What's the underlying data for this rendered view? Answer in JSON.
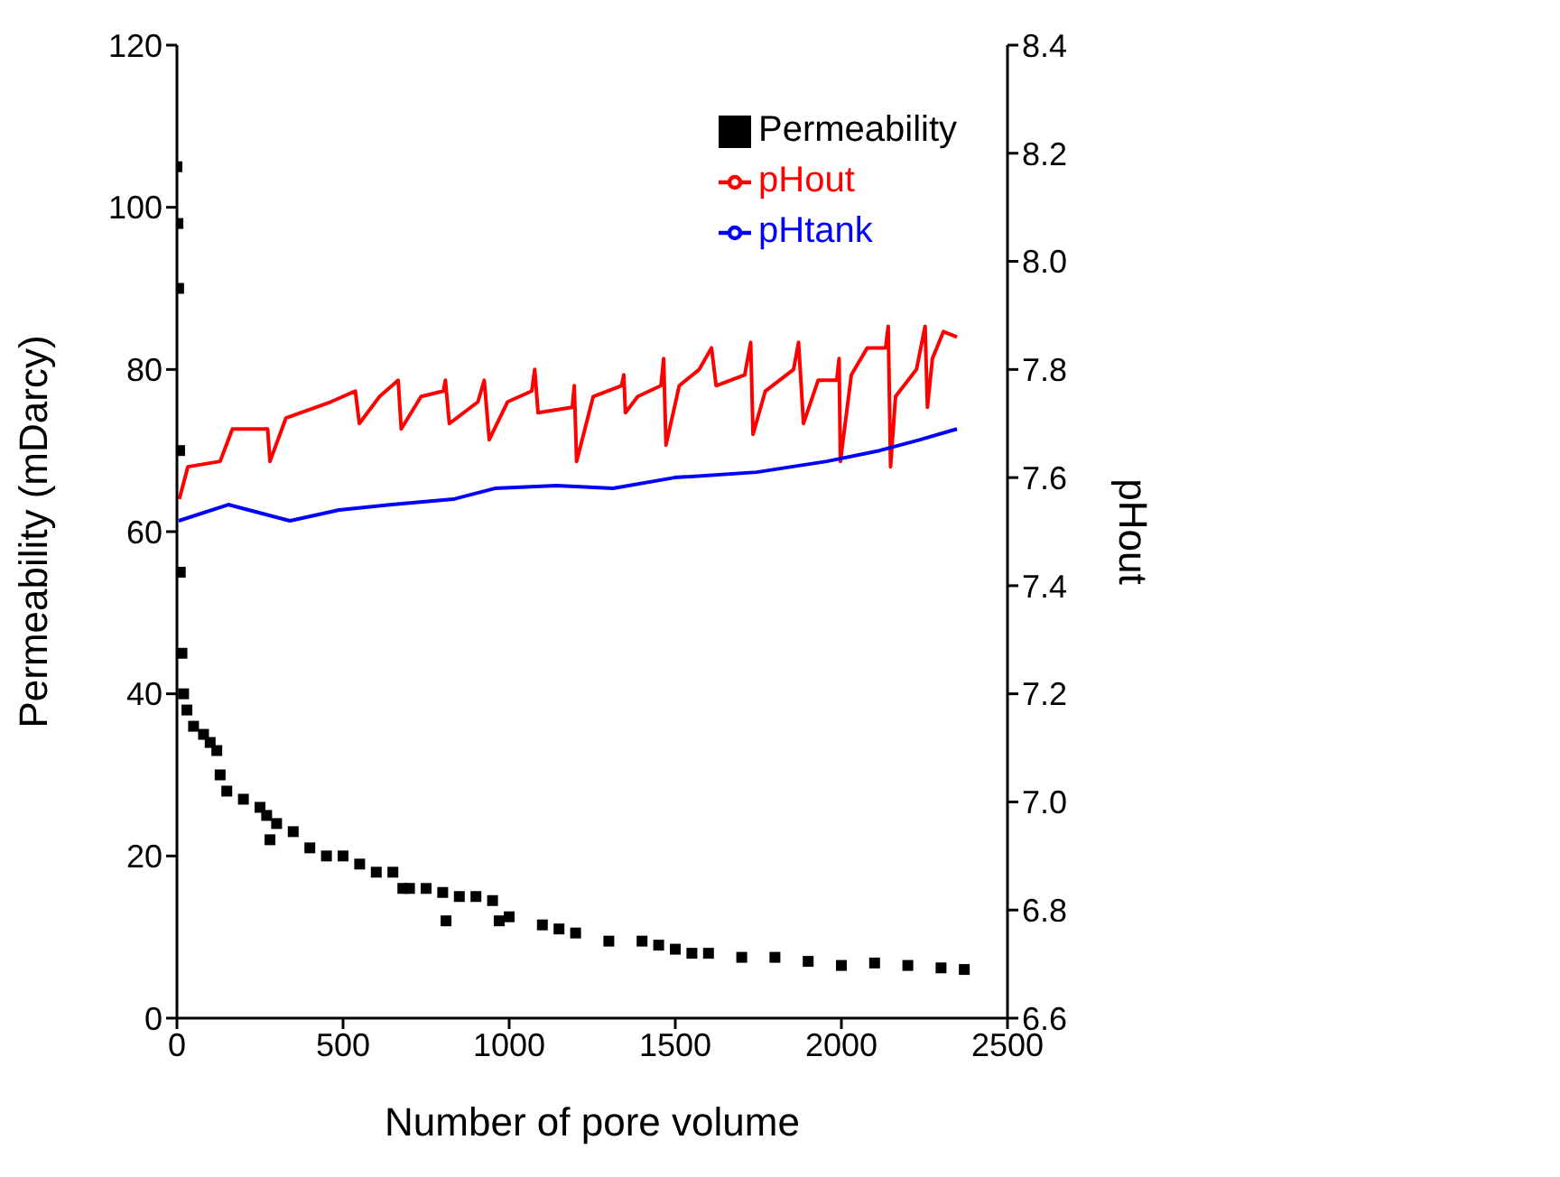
{
  "chart_data": {
    "type": "line",
    "xlabel": "Number of pore volume",
    "ylabel": "Permeability (mDarcy)",
    "y2label": "pHout",
    "xlim": [
      0,
      2500
    ],
    "xticks": [
      0,
      500,
      1000,
      1500,
      2000,
      2500
    ],
    "ylim": [
      0,
      120
    ],
    "yticks": [
      0,
      20,
      40,
      60,
      80,
      100,
      120
    ],
    "y2lim": [
      6.6,
      8.4
    ],
    "y2ticks": [
      6.6,
      6.8,
      {
        "value": 7,
        "label": "7.0"
      },
      7.2,
      7.4,
      7.6,
      7.8,
      {
        "value": 8,
        "label": "8.0"
      },
      8.2,
      8.4
    ],
    "legend": "top right",
    "grid": false,
    "series": [
      {
        "name": "Permeability",
        "type": "scatter",
        "marker": "square",
        "color": "#000000",
        "x": [
          0,
          3,
          5,
          8,
          10,
          15,
          20,
          30,
          50,
          80,
          100,
          120,
          130,
          150,
          200,
          250,
          270,
          280,
          300,
          350,
          400,
          450,
          500,
          550,
          600,
          650,
          680,
          700,
          750,
          800,
          810,
          850,
          900,
          950,
          970,
          1000,
          1100,
          1150,
          1200,
          1300,
          1400,
          1450,
          1500,
          1550,
          1600,
          1700,
          1800,
          1900,
          2000,
          2100,
          2200,
          2300,
          2370
        ],
        "values": [
          105,
          98,
          90,
          70,
          55,
          45,
          40,
          38,
          36,
          35,
          34,
          33,
          30,
          28,
          27,
          26,
          25,
          22,
          24,
          23,
          21,
          20,
          20,
          19,
          18,
          18,
          16,
          16,
          16,
          15.5,
          12,
          15,
          15,
          14.5,
          12,
          12.5,
          11.5,
          11,
          10.5,
          9.5,
          9.5,
          9,
          8.5,
          8,
          8,
          7.5,
          7.5,
          7,
          6.5,
          6.8,
          6.5,
          6.2,
          6
        ]
      },
      {
        "name": "pHout",
        "type": "line",
        "axis": "y2",
        "marker": "none",
        "line_style": "solid",
        "color": "#ff0000",
        "x": [
          7,
          33,
          130,
          167,
          273,
          280,
          328,
          463,
          537,
          549,
          610,
          666,
          675,
          735,
          802,
          808,
          820,
          906,
          925,
          940,
          995,
          1068,
          1077,
          1087,
          1190,
          1196,
          1203,
          1253,
          1338,
          1345,
          1350,
          1387,
          1457,
          1465,
          1472,
          1512,
          1572,
          1609,
          1623,
          1709,
          1727,
          1734,
          1771,
          1856,
          1871,
          1886,
          1930,
          1986,
          1993,
          1997,
          2030,
          2078,
          2133,
          2141,
          2148,
          2163,
          2226,
          2252,
          2259,
          2274,
          2307,
          2348
        ],
        "values": [
          7.56,
          7.62,
          7.63,
          7.69,
          7.69,
          7.63,
          7.71,
          7.74,
          7.76,
          7.7,
          7.75,
          7.78,
          7.69,
          7.75,
          7.76,
          7.78,
          7.7,
          7.74,
          7.78,
          7.67,
          7.74,
          7.76,
          7.8,
          7.72,
          7.73,
          7.77,
          7.63,
          7.75,
          7.77,
          7.79,
          7.72,
          7.75,
          7.77,
          7.82,
          7.66,
          7.77,
          7.8,
          7.84,
          7.77,
          7.79,
          7.85,
          7.68,
          7.76,
          7.8,
          7.85,
          7.7,
          7.78,
          7.78,
          7.82,
          7.63,
          7.79,
          7.84,
          7.84,
          7.88,
          7.62,
          7.75,
          7.8,
          7.88,
          7.73,
          7.82,
          7.87,
          7.86
        ]
      },
      {
        "name": "pHtank",
        "type": "line",
        "axis": "y2",
        "marker": "none",
        "line_style": "solid",
        "color": "#0000ff",
        "x": [
          5,
          155,
          340,
          488,
          647,
          832,
          957,
          1142,
          1313,
          1498,
          1745,
          1956,
          2115,
          2237,
          2348
        ],
        "values": [
          7.52,
          7.55,
          7.52,
          7.54,
          7.55,
          7.56,
          7.58,
          7.585,
          7.58,
          7.6,
          7.61,
          7.63,
          7.65,
          7.67,
          7.69
        ]
      }
    ]
  }
}
